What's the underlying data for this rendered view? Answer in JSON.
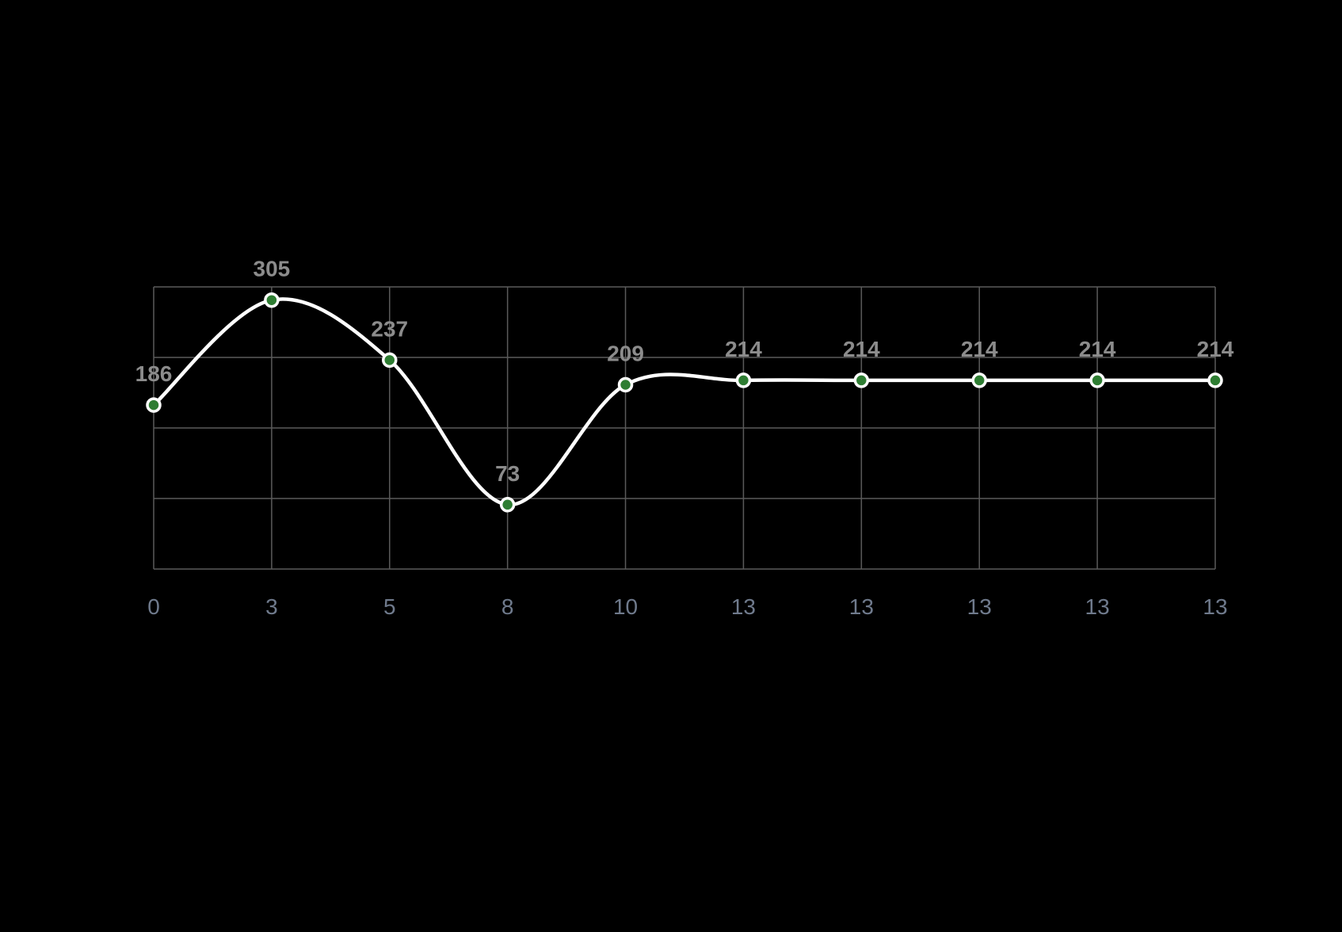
{
  "chart_data": {
    "type": "line",
    "title": "",
    "xlabel": "",
    "ylabel": "",
    "categories": [
      "0",
      "3",
      "5",
      "8",
      "10",
      "13",
      "13",
      "13",
      "13",
      "13"
    ],
    "series": [
      {
        "values": [
          186,
          305,
          237,
          73,
          209,
          214,
          214,
          214,
          214,
          214
        ]
      }
    ],
    "ylim": [
      0,
      320
    ],
    "y_grid_step": 80,
    "grid": true,
    "legend": "none",
    "smooth": true,
    "show_data_labels": true,
    "colors": {
      "background": "#000000",
      "line": "#ffffff",
      "point_fill": "#2e7d32",
      "point_stroke": "#ffffff",
      "grid": "#5a5a5a",
      "data_label": "#8c8c8c",
      "tick_label": "#6f7a8c"
    }
  }
}
